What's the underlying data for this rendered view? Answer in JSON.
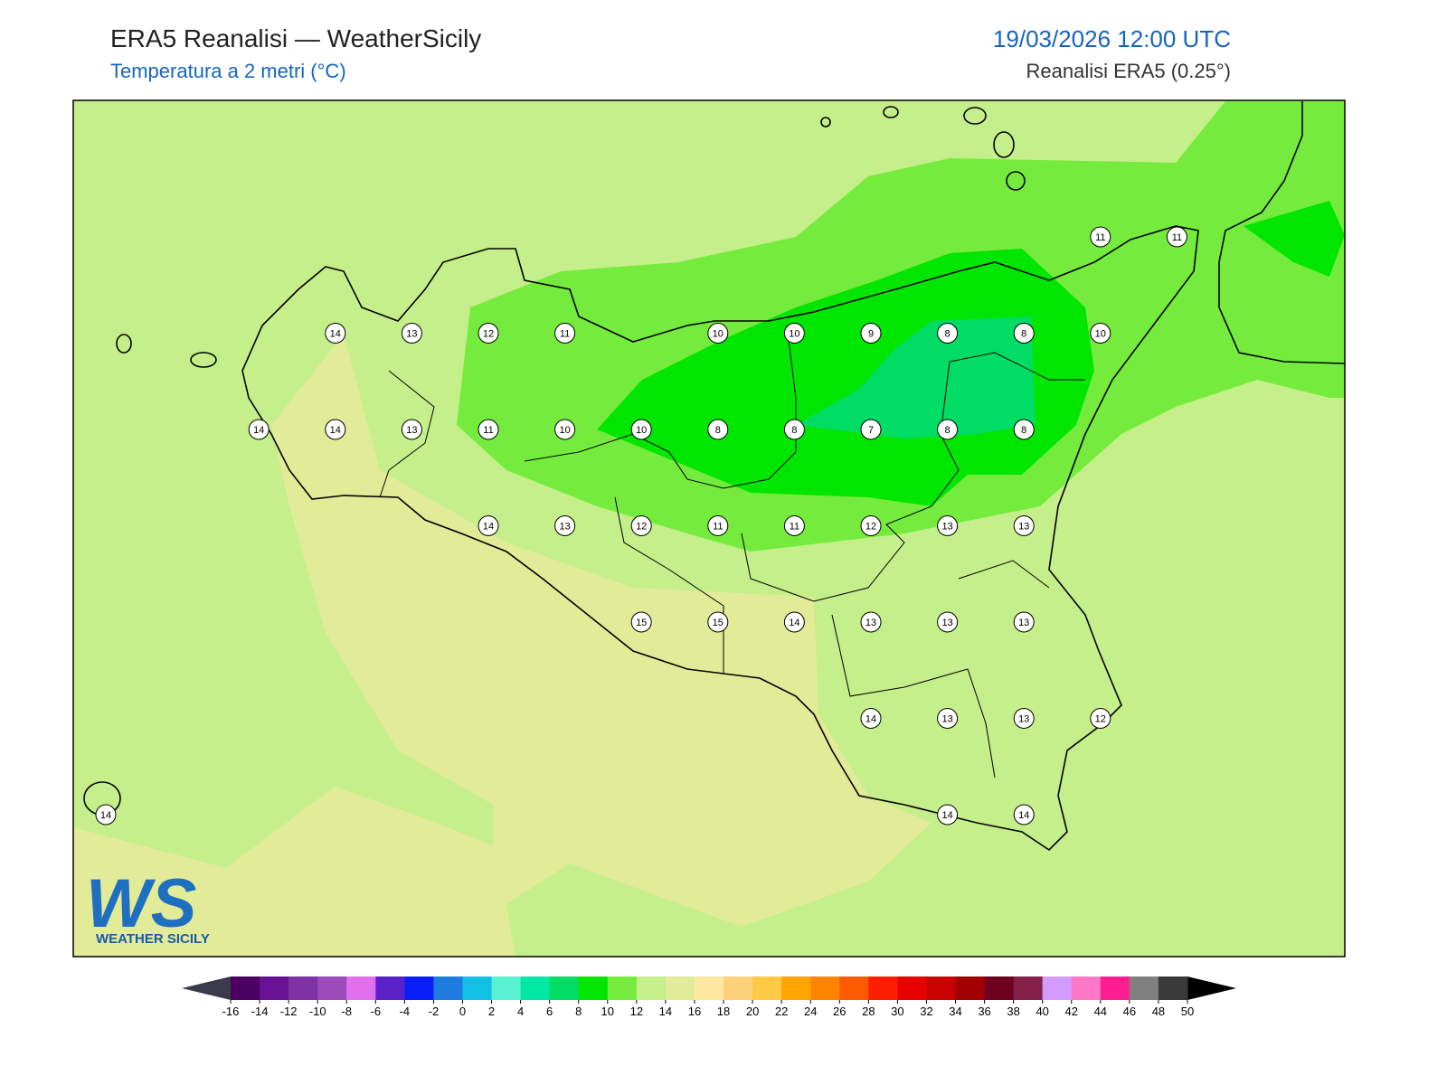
{
  "header": {
    "title": "ERA5 Reanalisi — WeatherSicily",
    "subtitle": "Temperatura a 2 metri (°C)",
    "datetime": "19/03/2026 12:00 UTC",
    "source": "Reanalisi ERA5 (0.25°)"
  },
  "logo": {
    "mark": "WS",
    "name": "WEATHER SICILY"
  },
  "stations": [
    [
      null,
      null,
      null,
      null,
      null,
      null,
      null,
      null,
      null,
      null,
      null,
      null,
      null,
      11,
      11
    ],
    [
      null,
      null,
      null,
      14,
      13,
      12,
      11,
      null,
      10,
      10,
      9,
      8,
      8,
      10,
      null
    ],
    [
      null,
      null,
      14,
      14,
      13,
      11,
      10,
      10,
      8,
      8,
      7,
      8,
      8,
      null,
      null
    ],
    [
      null,
      null,
      null,
      null,
      null,
      14,
      13,
      12,
      11,
      11,
      12,
      13,
      13,
      null,
      null
    ],
    [
      null,
      null,
      null,
      null,
      null,
      null,
      null,
      15,
      15,
      14,
      13,
      13,
      13,
      null,
      null
    ],
    [
      null,
      null,
      null,
      null,
      null,
      null,
      null,
      null,
      null,
      null,
      14,
      13,
      13,
      12,
      null
    ],
    [
      14,
      null,
      null,
      null,
      null,
      null,
      null,
      null,
      null,
      null,
      null,
      14,
      14,
      null,
      null
    ]
  ],
  "colorbar": {
    "ticks": [
      -16,
      -14,
      -12,
      -10,
      -8,
      -6,
      -4,
      -2,
      0,
      2,
      4,
      6,
      8,
      10,
      12,
      14,
      16,
      18,
      20,
      22,
      24,
      26,
      28,
      30,
      32,
      34,
      36,
      38,
      40,
      42,
      44,
      46,
      48,
      50
    ],
    "colors": [
      "#4b0062",
      "#6a1296",
      "#7f31a6",
      "#9c4bbb",
      "#e070ee",
      "#5a22c8",
      "#0a1efa",
      "#1d7ce0",
      "#12c0e6",
      "#5af0d2",
      "#00e8a6",
      "#00dc64",
      "#00e600",
      "#75ec3d",
      "#c5ef8a",
      "#e2eb98",
      "#fee8a0",
      "#fdd07a",
      "#ffc845",
      "#ffa500",
      "#ff8400",
      "#ff5a00",
      "#ff1e00",
      "#e60000",
      "#c80000",
      "#a00000",
      "#6e0020",
      "#822048",
      "#d39bff",
      "#ff78c8",
      "#ff1e90",
      "#808080",
      "#3a3a3a"
    ],
    "under": "#3a3a4a",
    "over": "#000000"
  }
}
